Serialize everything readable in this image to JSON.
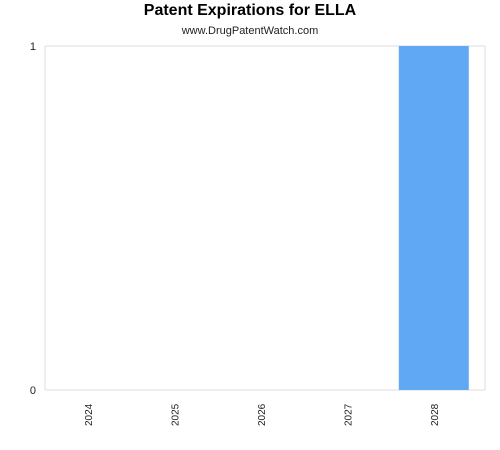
{
  "chart_data": {
    "type": "bar",
    "title": "Patent Expirations for ELLA",
    "subtitle": "www.DrugPatentWatch.com",
    "categories": [
      "2024",
      "2025",
      "2026",
      "2027",
      "2028"
    ],
    "values": [
      0,
      0,
      0,
      0,
      1
    ],
    "y_ticks": [
      "0",
      "1"
    ],
    "ylim": [
      0,
      1
    ],
    "xlabel": "",
    "ylabel": "",
    "grid": true,
    "legend": "none",
    "bar_color": "#60a8f4",
    "grid_color": "#dddddd"
  }
}
